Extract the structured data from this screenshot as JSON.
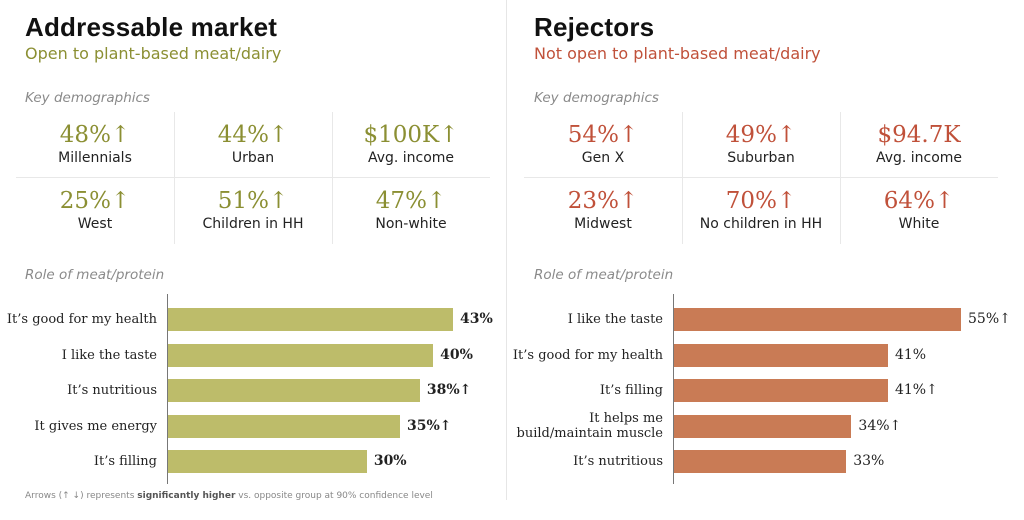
{
  "footnote": {
    "prefix": "Arrows (↑ ↓) represents ",
    "bold": "significantly higher",
    "suffix": " vs. opposite group at 90% confidence level"
  },
  "panels": [
    {
      "title": "Addressable market",
      "subtitle": "Open to plant-based meat/dairy",
      "accent_color": "#8b8f33",
      "bar_color": "#bdbc6a",
      "demographics_label": "Key demographics",
      "demographics": [
        {
          "value": "48%↑",
          "label": "Millennials"
        },
        {
          "value": "44%↑",
          "label": "Urban"
        },
        {
          "value": "$100K↑",
          "label": "Avg. income"
        },
        {
          "value": "25%↑",
          "label": "West"
        },
        {
          "value": "51%↑",
          "label": "Children in HH"
        },
        {
          "value": "47%↑",
          "label": "Non-white"
        }
      ],
      "role_label": "Role of meat/protein"
    },
    {
      "title": "Rejectors",
      "subtitle": "Not open to plant-based meat/dairy",
      "accent_color": "#c0513a",
      "bar_color": "#c97b55",
      "demographics_label": "Key demographics",
      "demographics": [
        {
          "value": "54%↑",
          "label": "Gen X"
        },
        {
          "value": "49%↑",
          "label": "Suburban"
        },
        {
          "value": "$94.7K",
          "label": "Avg. income"
        },
        {
          "value": "23%↑",
          "label": "Midwest"
        },
        {
          "value": "70%↑",
          "label": "No children in HH"
        },
        {
          "value": "64%↑",
          "label": "White"
        }
      ],
      "role_label": "Role of meat/protein"
    }
  ],
  "chart_data": [
    {
      "type": "bar",
      "orientation": "horizontal",
      "title": "Role of meat/protein — Addressable market",
      "categories": [
        "It’s good for my health",
        "I like the taste",
        "It’s nutritious",
        "It gives me energy",
        "It’s filling"
      ],
      "values": [
        43,
        40,
        38,
        35,
        30
      ],
      "value_labels": [
        "43%",
        "40%",
        "38%↑",
        "35%↑",
        "30%"
      ],
      "unit": "%",
      "xlabel": "",
      "ylabel": "",
      "grid": false
    },
    {
      "type": "bar",
      "orientation": "horizontal",
      "title": "Role of meat/protein — Rejectors",
      "categories": [
        "I like the taste",
        "It’s good for my health",
        "It’s filling",
        "It helps me\nbuild/maintain muscle",
        "It’s nutritious"
      ],
      "values": [
        55,
        41,
        41,
        34,
        33
      ],
      "value_labels": [
        "55%↑",
        "41%",
        "41%↑",
        "34%↑",
        "33%"
      ],
      "unit": "%",
      "xlabel": "",
      "ylabel": "",
      "grid": false
    }
  ]
}
